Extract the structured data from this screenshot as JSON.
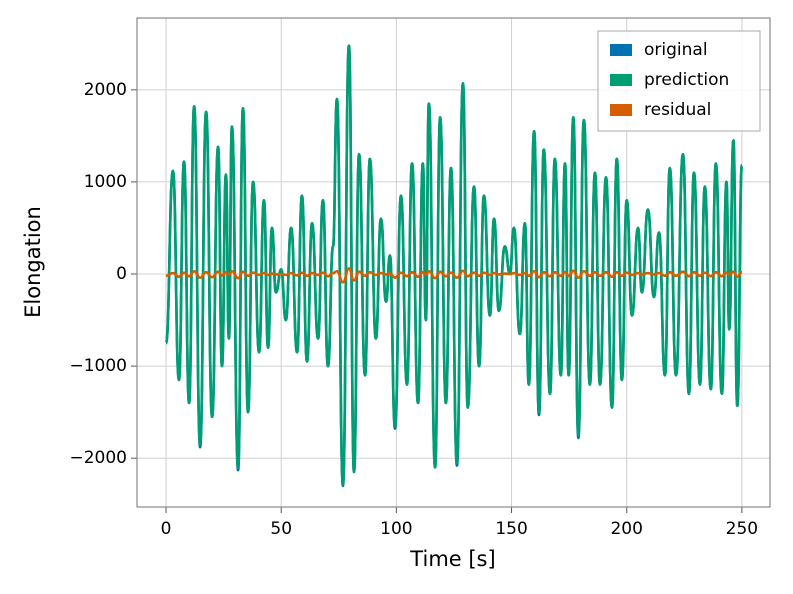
{
  "chart_data": {
    "type": "line",
    "xlabel": "Time [s]",
    "ylabel": "Elongation",
    "x": [
      0,
      3,
      5.6,
      7.8,
      10,
      12.2,
      14.8,
      17.4,
      20,
      22.6,
      24.3,
      26,
      27.3,
      28.6,
      31.3,
      33.4,
      35.6,
      37.8,
      40.4,
      42.5,
      44.3,
      46,
      47.7,
      50,
      52,
      54.3,
      56.9,
      59,
      61.2,
      63.4,
      66,
      68.1,
      70.3,
      72.5,
      74.2,
      76.8,
      79.4,
      81.6,
      83.8,
      86.4,
      88.5,
      91.1,
      93.3,
      95.5,
      97.2,
      99.4,
      102,
      104.6,
      106.8,
      109.4,
      111.5,
      112.8,
      114.1,
      116.8,
      119,
      121.5,
      123.7,
      126.3,
      128.9,
      131,
      133.7,
      135.9,
      138,
      140.6,
      142.4,
      144.5,
      147.1,
      149.3,
      151,
      153.6,
      155.8,
      157.5,
      159.8,
      161.9,
      164,
      166.7,
      168.8,
      171.4,
      173.2,
      174.8,
      176.8,
      179,
      181.4,
      184,
      186.2,
      188.4,
      191,
      193.6,
      195.7,
      197.9,
      200,
      202.3,
      204.9,
      206.6,
      209.2,
      211.8,
      214,
      216.6,
      218.7,
      221.4,
      224.4,
      227,
      229.2,
      231.8,
      233.9,
      236.5,
      238.7,
      241.3,
      243.3,
      244.5,
      246.3,
      248,
      250
    ],
    "series": [
      {
        "name": "original",
        "color": "#0072b2",
        "values": [
          -750,
          1120,
          -1150,
          1220,
          -1400,
          1820,
          -1880,
          1760,
          -1550,
          1380,
          -1000,
          1080,
          -700,
          1600,
          -2130,
          1800,
          -1500,
          1000,
          -850,
          800,
          -800,
          500,
          -200,
          50,
          -500,
          500,
          -850,
          850,
          -950,
          550,
          -700,
          800,
          -1000,
          300,
          1900,
          -2300,
          2480,
          -2150,
          1300,
          -1100,
          1250,
          -700,
          600,
          -300,
          200,
          -1680,
          850,
          -1200,
          1200,
          -1400,
          1200,
          -500,
          1850,
          -2100,
          1700,
          -1400,
          1150,
          -2080,
          2070,
          -1450,
          950,
          -1000,
          850,
          -450,
          600,
          -400,
          300,
          0,
          500,
          -650,
          550,
          -1200,
          1550,
          -1530,
          1350,
          -1300,
          1250,
          -1100,
          1200,
          -1100,
          1700,
          -1780,
          1670,
          -1200,
          1100,
          -1200,
          1050,
          -1450,
          1250,
          -1150,
          800,
          -450,
          500,
          -200,
          700,
          -250,
          450,
          -1100,
          1150,
          -1100,
          1300,
          -1300,
          1100,
          -1200,
          950,
          -1250,
          1200,
          -1300,
          1000,
          -600,
          1450,
          -1430,
          1180
        ]
      },
      {
        "name": "prediction",
        "color": "#009e73",
        "values": [
          -750,
          1120,
          -1150,
          1220,
          -1400,
          1820,
          -1850,
          1760,
          -1550,
          1380,
          -1000,
          1080,
          -700,
          1600,
          -2100,
          1800,
          -1500,
          1000,
          -850,
          800,
          -800,
          500,
          -200,
          50,
          -500,
          500,
          -850,
          850,
          -950,
          550,
          -700,
          800,
          -1000,
          300,
          1900,
          -2280,
          2480,
          -2150,
          1300,
          -1100,
          1250,
          -700,
          600,
          -300,
          200,
          -1650,
          850,
          -1200,
          1200,
          -1400,
          1200,
          -500,
          1850,
          -2100,
          1700,
          -1400,
          1150,
          -2050,
          2070,
          -1450,
          950,
          -1000,
          850,
          -450,
          600,
          -400,
          300,
          0,
          500,
          -650,
          550,
          -1200,
          1550,
          -1500,
          1350,
          -1300,
          1250,
          -1100,
          1200,
          -1100,
          1700,
          -1750,
          1670,
          -1200,
          1100,
          -1200,
          1050,
          -1450,
          1250,
          -1150,
          800,
          -450,
          500,
          -200,
          700,
          -250,
          450,
          -1100,
          1150,
          -1100,
          1300,
          -1300,
          1100,
          -1200,
          950,
          -1250,
          1200,
          -1300,
          1000,
          -600,
          1450,
          -1430,
          1180
        ]
      },
      {
        "name": "residual",
        "color": "#d55e00",
        "values": [
          -20,
          10,
          -30,
          15,
          -25,
          30,
          -40,
          20,
          -35,
          25,
          -15,
          20,
          -10,
          30,
          -45,
          25,
          -20,
          15,
          -10,
          10,
          -10,
          5,
          -5,
          0,
          -10,
          10,
          -15,
          15,
          -20,
          10,
          -10,
          15,
          -25,
          10,
          30,
          -90,
          60,
          -70,
          25,
          -20,
          20,
          -10,
          10,
          -5,
          5,
          -40,
          15,
          -25,
          20,
          -30,
          20,
          -10,
          30,
          -45,
          25,
          -25,
          15,
          -40,
          35,
          -25,
          15,
          -20,
          15,
          -10,
          10,
          -5,
          5,
          0,
          10,
          -10,
          10,
          -20,
          30,
          -35,
          20,
          -25,
          20,
          -20,
          20,
          -20,
          35,
          -40,
          30,
          -20,
          20,
          -20,
          20,
          -30,
          20,
          -20,
          15,
          -10,
          10,
          -5,
          10,
          -5,
          10,
          -20,
          20,
          -20,
          25,
          -25,
          20,
          -20,
          15,
          -25,
          20,
          -25,
          15,
          -10,
          25,
          -30,
          20
        ]
      }
    ],
    "xlim": [
      -12.6,
      262.2
    ],
    "ylim": [
      -2530,
      2780
    ],
    "xticks": [
      0,
      50,
      100,
      150,
      200,
      250
    ],
    "yticks": [
      {
        "value": -2000,
        "label": "−2000"
      },
      {
        "value": -1000,
        "label": "−1000"
      },
      0,
      1000,
      2000
    ],
    "grid": true,
    "legend": "upper right"
  }
}
